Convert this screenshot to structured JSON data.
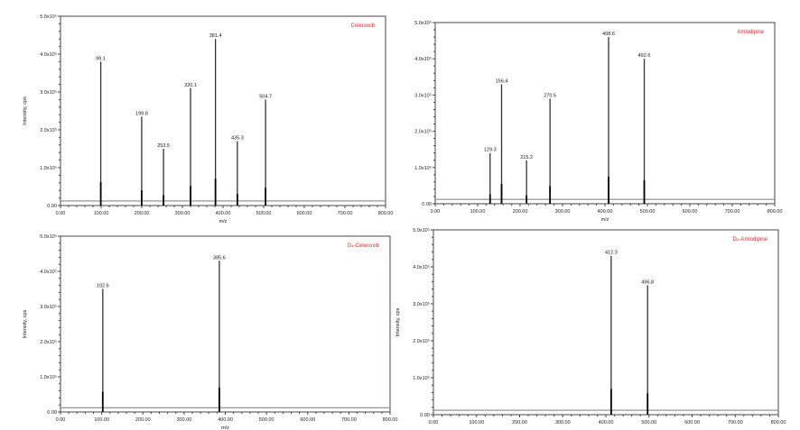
{
  "colors": {
    "title": "#e0262a",
    "peak": "#333333",
    "axis": "#444444",
    "baseline": "#888888"
  },
  "chart_data": [
    {
      "type": "bar",
      "title": "Celecoxib",
      "xlabel": "m/z",
      "ylabel": "Intensity, cps",
      "xlim": [
        0,
        800
      ],
      "ylim": [
        0,
        5.0
      ],
      "x_ticks": [
        "0.00",
        "100.00",
        "200.00",
        "300.00",
        "400.00",
        "500.00",
        "600.00",
        "700.00",
        "800.00"
      ],
      "y_ticks": [
        "0.00",
        "1.0x10⁵",
        "2.0x10⁵",
        "3.0x10⁵",
        "4.0x10⁵",
        "5.0x10⁵"
      ],
      "peaks": [
        {
          "label": "99.1",
          "mz": 99.1,
          "intensity": 3.8
        },
        {
          "label": "199.8",
          "mz": 199.8,
          "intensity": 2.35
        },
        {
          "label": "253.5",
          "mz": 253.5,
          "intensity": 1.5
        },
        {
          "label": "320.1",
          "mz": 320.1,
          "intensity": 3.1
        },
        {
          "label": "381.4",
          "mz": 381.4,
          "intensity": 4.4
        },
        {
          "label": "435.3",
          "mz": 435.3,
          "intensity": 1.7
        },
        {
          "label": "504.7",
          "mz": 504.7,
          "intensity": 2.8
        }
      ]
    },
    {
      "type": "bar",
      "title": "Amlodipine",
      "xlabel": "m/z",
      "ylabel": "",
      "xlim": [
        0,
        800
      ],
      "ylim": [
        0,
        5.0
      ],
      "x_ticks": [
        "0.00",
        "100.00",
        "200.00",
        "300.00",
        "400.00",
        "500.00",
        "600.00",
        "700.00",
        "800.00"
      ],
      "y_ticks": [
        "0.00",
        "1.0x10⁵",
        "2.0x10⁵",
        "3.0x10⁵",
        "4.0x10⁵",
        "5.0x10⁵"
      ],
      "peaks": [
        {
          "label": "129.3",
          "mz": 129.3,
          "intensity": 1.4
        },
        {
          "label": "156.4",
          "mz": 156.4,
          "intensity": 3.3
        },
        {
          "label": "215.2",
          "mz": 215.2,
          "intensity": 1.2
        },
        {
          "label": "270.5",
          "mz": 270.5,
          "intensity": 2.9
        },
        {
          "label": "408.6",
          "mz": 408.6,
          "intensity": 4.6
        },
        {
          "label": "492.6",
          "mz": 492.6,
          "intensity": 4.0
        }
      ]
    },
    {
      "type": "bar",
      "title": "D₄-Celecoxib",
      "xlabel": "m/z",
      "ylabel": "Intensity, cps",
      "xlim": [
        0,
        800
      ],
      "ylim": [
        0,
        5.0
      ],
      "x_ticks": [
        "0.00",
        "100.00",
        "200.00",
        "300.00",
        "400.00",
        "500.00",
        "600.00",
        "700.00",
        "800.00"
      ],
      "y_ticks": [
        "0.00",
        "1.0x10⁵",
        "2.0x10⁵",
        "3.0x10⁵",
        "4.0x10⁵",
        "5.0x10⁵"
      ],
      "peaks": [
        {
          "label": "102.6",
          "mz": 102.6,
          "intensity": 3.5
        },
        {
          "label": "385.6",
          "mz": 385.6,
          "intensity": 4.3
        }
      ]
    },
    {
      "type": "bar",
      "title": "D₄-Amlodipine",
      "xlabel": "",
      "ylabel": "Intensity, cps",
      "xlim": [
        0,
        800
      ],
      "ylim": [
        0,
        5.0
      ],
      "x_ticks": [
        "0.00",
        "100.00",
        "200.00",
        "300.00",
        "400.00",
        "500.00",
        "600.00",
        "700.00",
        "800.00"
      ],
      "y_ticks": [
        "0.00",
        "1.0x10⁵",
        "2.0x10⁵",
        "3.0x10⁵",
        "4.0x10⁵",
        "5.0x10⁵"
      ],
      "peaks": [
        {
          "label": "412.3",
          "mz": 412.3,
          "intensity": 4.3
        },
        {
          "label": "496.8",
          "mz": 496.8,
          "intensity": 3.5
        }
      ]
    }
  ]
}
